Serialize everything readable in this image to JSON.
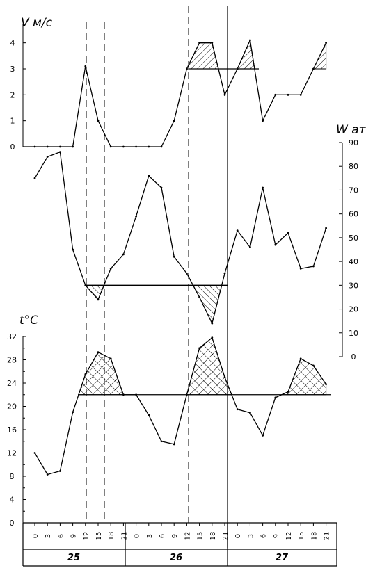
{
  "chart_data": [
    {
      "type": "line",
      "title": "",
      "ylabel": "V м/с",
      "ylim": [
        0,
        4.5
      ],
      "yticks": [
        0,
        1,
        2,
        3,
        4
      ],
      "threshold": 3,
      "x": [
        "25 0",
        "25 3",
        "25 6",
        "25 9",
        "25 12",
        "25 15",
        "25 18",
        "25 21",
        "26 0",
        "26 3",
        "26 6",
        "26 9",
        "26 12",
        "26 15",
        "26 18",
        "26 21",
        "27 0",
        "27 3",
        "27 6",
        "27 9",
        "27 12",
        "27 15",
        "27 18",
        "27 21"
      ],
      "values": [
        0,
        0,
        0,
        0,
        3.1,
        1,
        0,
        0,
        0,
        0,
        0,
        1,
        3,
        4,
        4,
        2,
        3,
        4.1,
        1,
        2,
        2,
        2,
        3,
        4
      ]
    },
    {
      "type": "line",
      "title": "",
      "ylabel": "W ат",
      "ylim": [
        0,
        90
      ],
      "yticks": [
        0,
        10,
        20,
        30,
        40,
        50,
        60,
        70,
        80,
        90
      ],
      "threshold": 30,
      "x": [
        "25 0",
        "25 3",
        "25 6",
        "25 9",
        "25 12",
        "25 15",
        "25 18",
        "25 21",
        "26 0",
        "26 3",
        "26 6",
        "26 9",
        "26 12",
        "26 15",
        "26 18",
        "26 21",
        "27 0",
        "27 3",
        "27 6",
        "27 9",
        "27 12",
        "27 15",
        "27 18",
        "27 21"
      ],
      "values": [
        75,
        84,
        86,
        45,
        30,
        24,
        37,
        43,
        59,
        76,
        71,
        42,
        35,
        25,
        14,
        35,
        53,
        46,
        71,
        47,
        52,
        37,
        38,
        54
      ]
    },
    {
      "type": "line",
      "title": "",
      "ylabel": "t°C",
      "ylim": [
        0,
        32
      ],
      "yticks": [
        0,
        4,
        8,
        12,
        16,
        20,
        24,
        28,
        32
      ],
      "threshold": 22,
      "x": [
        "25 0",
        "25 3",
        "25 6",
        "25 9",
        "25 12",
        "25 15",
        "25 18",
        "25 21",
        "26 0",
        "26 3",
        "26 6",
        "26 9",
        "26 12",
        "26 15",
        "26 18",
        "26 21",
        "27 0",
        "27 3",
        "27 6",
        "27 9",
        "27 12",
        "27 15",
        "27 18",
        "27 21"
      ],
      "values": [
        12,
        8.3,
        8.9,
        19,
        25.5,
        29.3,
        28.2,
        22,
        22,
        18.5,
        14,
        13.5,
        22,
        30,
        31.8,
        25,
        19.5,
        18.9,
        15,
        21.5,
        22.5,
        28.2,
        27,
        23.8
      ]
    }
  ],
  "axis": {
    "hour_labels": [
      "0",
      "3",
      "6",
      "9",
      "12",
      "15",
      "18",
      "21",
      "0",
      "3",
      "6",
      "9",
      "12",
      "15",
      "18",
      "21",
      "0",
      "3",
      "6",
      "9",
      "12",
      "15",
      "18",
      "21"
    ],
    "days": [
      "25",
      "26",
      "27"
    ]
  },
  "labels": {
    "v": "V м/с",
    "w": "W ат",
    "t": "t°C"
  }
}
